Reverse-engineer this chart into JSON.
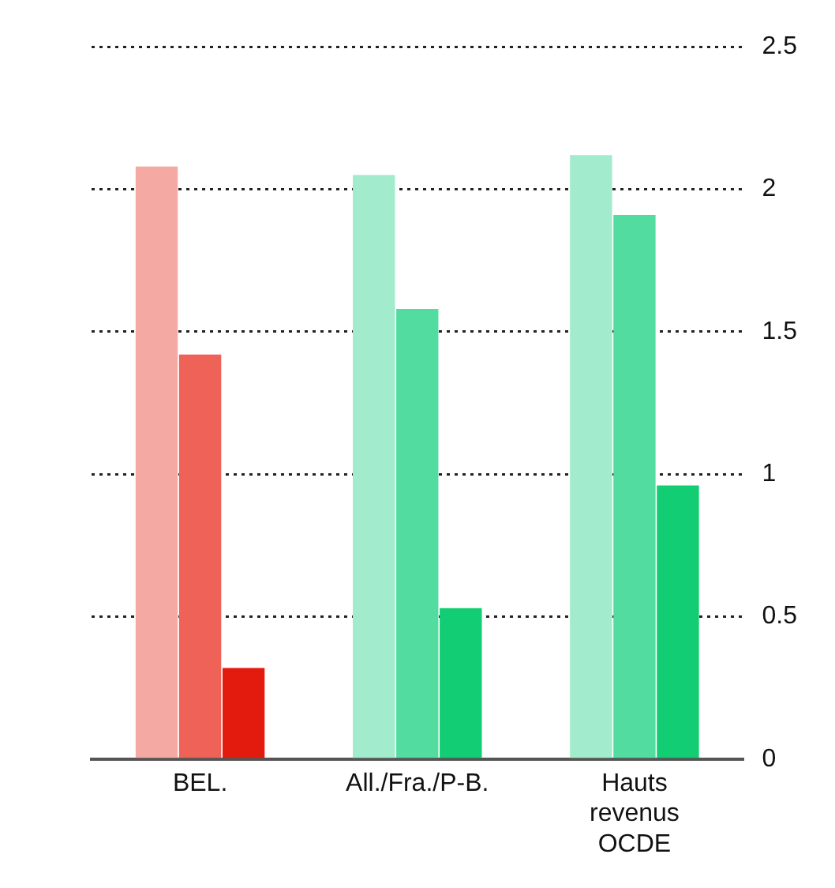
{
  "chart_data": {
    "type": "bar",
    "categories": [
      "BEL.",
      "All./Fra./P-B.",
      "Hauts revenus OCDE"
    ],
    "series": [
      {
        "colors": [
          "#f4aaa3",
          "#a3ebcd",
          "#a3ebcd"
        ],
        "values": [
          2.08,
          2.05,
          2.12
        ]
      },
      {
        "colors": [
          "#ee6257",
          "#52dc9f",
          "#52dc9f"
        ],
        "values": [
          1.42,
          1.58,
          1.91
        ]
      },
      {
        "colors": [
          "#e31b0f",
          "#13cd74",
          "#13cd74"
        ],
        "values": [
          0.32,
          0.53,
          0.96
        ]
      }
    ],
    "ylim": [
      0,
      2.5
    ],
    "yticks": [
      0,
      0.5,
      1,
      1.5,
      2,
      2.5
    ],
    "grid": "y",
    "legend": false
  }
}
